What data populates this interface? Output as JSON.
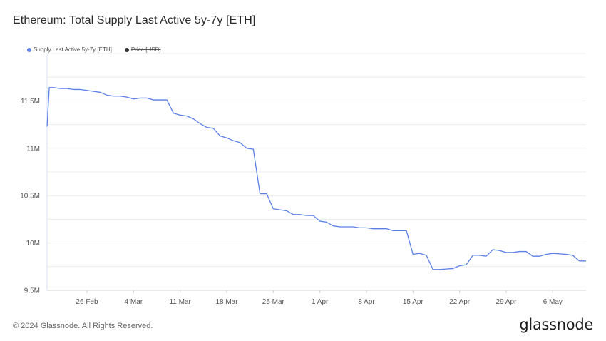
{
  "header": {
    "title": "Ethereum: Total Supply Last Active 5y-7y [ETH]"
  },
  "legend": {
    "items": [
      {
        "label": "Supply Last Active 5y-7y [ETH]",
        "color": "#5b7fe6",
        "active": true
      },
      {
        "label": "Price [USD]",
        "color": "#333333",
        "active": false
      }
    ]
  },
  "footer": {
    "copyright": "© 2024 Glassnode. All Rights Reserved.",
    "logo": "glassnode"
  },
  "chart_data": {
    "type": "line",
    "title": "Ethereum: Total Supply Last Active 5y-7y [ETH]",
    "xlabel": "",
    "ylabel": "",
    "x_start": "2024-02-20",
    "x_end": "2024-05-11",
    "xticks": [
      {
        "date": "2024-02-26",
        "label": "26 Feb"
      },
      {
        "date": "2024-03-04",
        "label": "4 Mar"
      },
      {
        "date": "2024-03-11",
        "label": "11 Mar"
      },
      {
        "date": "2024-03-18",
        "label": "18 Mar"
      },
      {
        "date": "2024-03-25",
        "label": "25 Mar"
      },
      {
        "date": "2024-04-01",
        "label": "1 Apr"
      },
      {
        "date": "2024-04-08",
        "label": "8 Apr"
      },
      {
        "date": "2024-04-15",
        "label": "15 Apr"
      },
      {
        "date": "2024-04-22",
        "label": "22 Apr"
      },
      {
        "date": "2024-04-29",
        "label": "29 Apr"
      },
      {
        "date": "2024-05-06",
        "label": "6 May"
      }
    ],
    "yticks": [
      {
        "value": 9500000,
        "label": "9.5M"
      },
      {
        "value": 10000000,
        "label": "10M"
      },
      {
        "value": 10500000,
        "label": "10.5M"
      },
      {
        "value": 11000000,
        "label": "11M"
      },
      {
        "value": 11500000,
        "label": "11.5M"
      }
    ],
    "ylim": [
      9500000,
      12000000
    ],
    "grid": true,
    "series": [
      {
        "name": "Supply Last Active 5y-7y [ETH]",
        "color": "#5b7fe6",
        "points": [
          [
            "2024-02-20",
            11230000
          ],
          [
            "2024-02-20T08:00",
            11640000
          ],
          [
            "2024-02-21",
            11640000
          ],
          [
            "2024-02-22",
            11630000
          ],
          [
            "2024-02-23",
            11630000
          ],
          [
            "2024-02-24",
            11620000
          ],
          [
            "2024-02-25",
            11620000
          ],
          [
            "2024-02-26",
            11610000
          ],
          [
            "2024-02-27",
            11600000
          ],
          [
            "2024-02-28",
            11590000
          ],
          [
            "2024-02-29",
            11560000
          ],
          [
            "2024-03-01",
            11550000
          ],
          [
            "2024-03-02",
            11550000
          ],
          [
            "2024-03-03",
            11540000
          ],
          [
            "2024-03-04",
            11520000
          ],
          [
            "2024-03-05",
            11530000
          ],
          [
            "2024-03-06",
            11530000
          ],
          [
            "2024-03-07",
            11510000
          ],
          [
            "2024-03-08",
            11510000
          ],
          [
            "2024-03-09",
            11510000
          ],
          [
            "2024-03-10",
            11370000
          ],
          [
            "2024-03-11",
            11350000
          ],
          [
            "2024-03-12",
            11340000
          ],
          [
            "2024-03-13",
            11310000
          ],
          [
            "2024-03-14",
            11260000
          ],
          [
            "2024-03-15",
            11220000
          ],
          [
            "2024-03-16",
            11210000
          ],
          [
            "2024-03-17",
            11130000
          ],
          [
            "2024-03-18",
            11110000
          ],
          [
            "2024-03-19",
            11080000
          ],
          [
            "2024-03-20",
            11060000
          ],
          [
            "2024-03-21",
            11000000
          ],
          [
            "2024-03-22",
            10990000
          ],
          [
            "2024-03-23",
            10520000
          ],
          [
            "2024-03-24",
            10520000
          ],
          [
            "2024-03-25",
            10360000
          ],
          [
            "2024-03-26",
            10350000
          ],
          [
            "2024-03-27",
            10340000
          ],
          [
            "2024-03-28",
            10300000
          ],
          [
            "2024-03-29",
            10300000
          ],
          [
            "2024-03-30",
            10290000
          ],
          [
            "2024-03-31",
            10290000
          ],
          [
            "2024-04-01",
            10230000
          ],
          [
            "2024-04-02",
            10220000
          ],
          [
            "2024-04-03",
            10180000
          ],
          [
            "2024-04-04",
            10170000
          ],
          [
            "2024-04-05",
            10170000
          ],
          [
            "2024-04-06",
            10170000
          ],
          [
            "2024-04-07",
            10160000
          ],
          [
            "2024-04-08",
            10160000
          ],
          [
            "2024-04-09",
            10150000
          ],
          [
            "2024-04-10",
            10150000
          ],
          [
            "2024-04-11",
            10150000
          ],
          [
            "2024-04-12",
            10130000
          ],
          [
            "2024-04-13",
            10130000
          ],
          [
            "2024-04-14",
            10130000
          ],
          [
            "2024-04-15",
            9880000
          ],
          [
            "2024-04-16",
            9890000
          ],
          [
            "2024-04-17",
            9870000
          ],
          [
            "2024-04-18",
            9720000
          ],
          [
            "2024-04-19",
            9720000
          ],
          [
            "2024-04-20",
            9725000
          ],
          [
            "2024-04-21",
            9730000
          ],
          [
            "2024-04-22",
            9760000
          ],
          [
            "2024-04-23",
            9770000
          ],
          [
            "2024-04-24",
            9870000
          ],
          [
            "2024-04-25",
            9870000
          ],
          [
            "2024-04-26",
            9860000
          ],
          [
            "2024-04-27",
            9930000
          ],
          [
            "2024-04-28",
            9920000
          ],
          [
            "2024-04-29",
            9900000
          ],
          [
            "2024-04-30",
            9900000
          ],
          [
            "2024-05-01",
            9910000
          ],
          [
            "2024-05-02",
            9910000
          ],
          [
            "2024-05-03",
            9860000
          ],
          [
            "2024-05-04",
            9860000
          ],
          [
            "2024-05-05",
            9880000
          ],
          [
            "2024-05-06",
            9890000
          ],
          [
            "2024-05-07",
            9885000
          ],
          [
            "2024-05-08",
            9880000
          ],
          [
            "2024-05-09",
            9870000
          ],
          [
            "2024-05-10",
            9810000
          ],
          [
            "2024-05-11",
            9810000
          ]
        ]
      }
    ]
  }
}
